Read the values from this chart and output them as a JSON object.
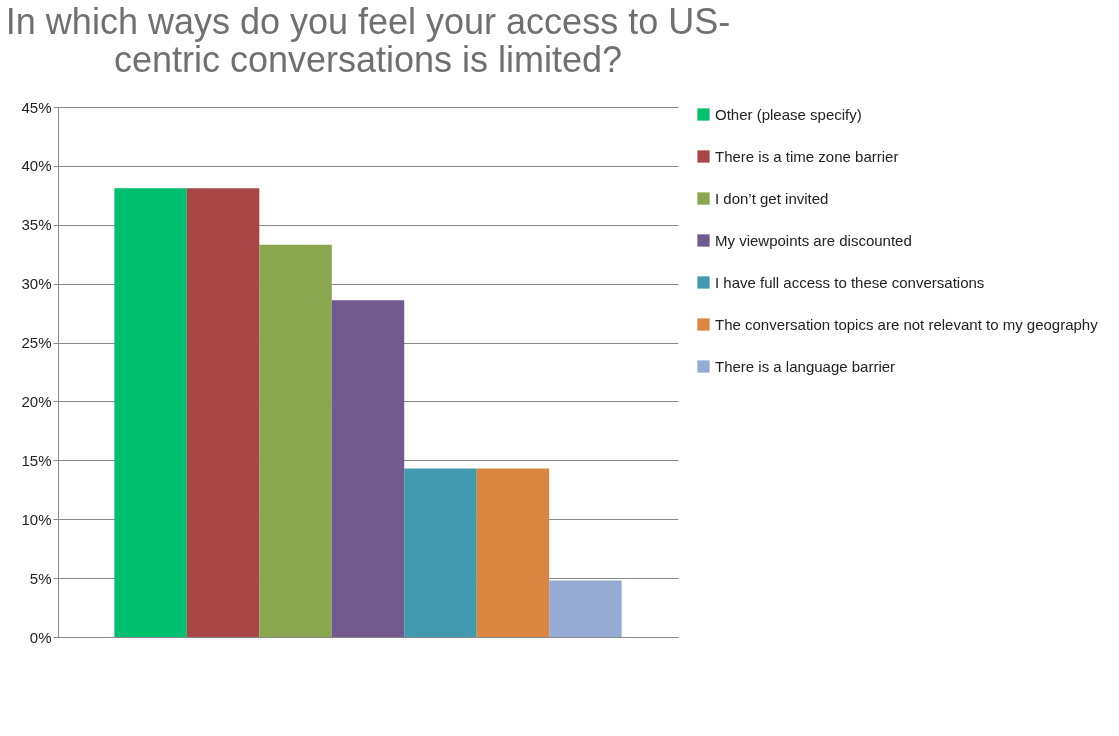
{
  "chart_data": {
    "type": "bar",
    "title": "In which ways do you feel your access to US-centric conversations is limited?",
    "categories": [
      null
    ],
    "series": [
      {
        "name": "Other (please specify)",
        "color": "#00bf6f",
        "values": [
          38.1
        ]
      },
      {
        "name": "There is a time zone barrier",
        "color": "#a84646",
        "values": [
          38.1
        ]
      },
      {
        "name": "I don’t get invited",
        "color": "#8aa64e",
        "values": [
          33.3
        ]
      },
      {
        "name": "My viewpoints are discounted",
        "color": "#725a8e",
        "values": [
          28.6
        ]
      },
      {
        "name": "I have full access to these conversations",
        "color": "#4299b0",
        "values": [
          14.3
        ]
      },
      {
        "name": "The conversation topics are not relevant to my geography",
        "color": "#da8640",
        "values": [
          14.3
        ]
      },
      {
        "name": "There is a language barrier",
        "color": "#95abd4",
        "values": [
          4.8
        ]
      }
    ],
    "ylim": [
      0,
      45
    ],
    "yticks": [
      {
        "value": 0,
        "label": "0%"
      },
      {
        "value": 5,
        "label": "5%"
      },
      {
        "value": 10,
        "label": "10%"
      },
      {
        "value": 15,
        "label": "15%"
      },
      {
        "value": 20,
        "label": "20%"
      },
      {
        "value": 25,
        "label": "25%"
      },
      {
        "value": 30,
        "label": "30%"
      },
      {
        "value": 35,
        "label": "35%"
      },
      {
        "value": 40,
        "label": "40%"
      },
      {
        "value": 45,
        "label": "45%"
      }
    ],
    "grid": "y",
    "legend": "right"
  }
}
